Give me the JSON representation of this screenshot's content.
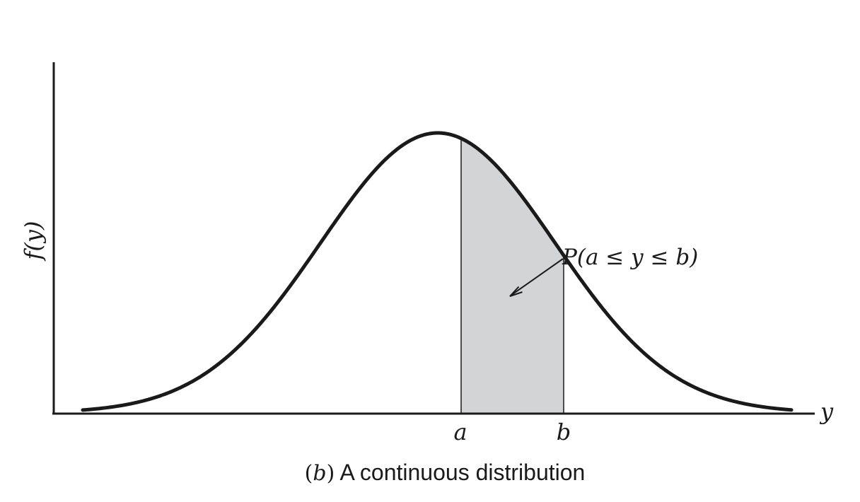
{
  "figure": {
    "ylabel": "f(y)",
    "xlabel": "y",
    "bound_a_label": "a",
    "bound_b_label": "b",
    "area_label": "P(a ≤ y ≤ b)",
    "caption": {
      "tag_open": "(",
      "tag_letter": "b",
      "tag_close": ")",
      "text": " A continuous distribution"
    }
  },
  "colors": {
    "ink": "#1a1a1a",
    "shaded_region": "#d3d4d6",
    "background": "#ffffff"
  }
}
